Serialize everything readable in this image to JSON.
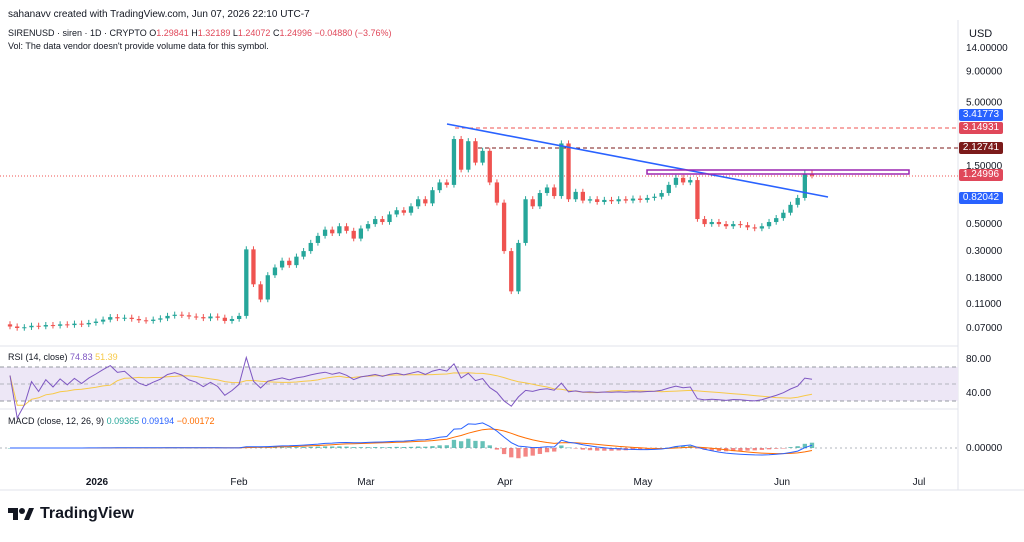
{
  "attribution": "sahanavv created with TradingView.com, Jun 07, 2026 22:10 UTC-7",
  "currency": "USD",
  "symbol": {
    "title": "SIRENUSD · siren · 1D · CRYPTO",
    "o_label": "O",
    "o": "1.29841",
    "h_label": "H",
    "h": "1.32189",
    "l_label": "L",
    "l": "1.24072",
    "c_label": "C",
    "c": "1.24996",
    "change": "−0.04880 (−3.76%)"
  },
  "volume_note": "Vol: The data vendor doesn't provide volume data for this symbol.",
  "price_axis": [
    "14.00000",
    "9.00000",
    "5.00000",
    "1.50000",
    "0.50000",
    "0.30000",
    "0.18000",
    "0.11000",
    "0.07000"
  ],
  "price_tags": [
    {
      "text": "3.41773",
      "color": "#2962ff"
    },
    {
      "text": "3.14931",
      "color": "#e0485a"
    },
    {
      "text": "2.12741",
      "color": "#7b1a1a"
    },
    {
      "text": "1.24996",
      "color": "#e0485a"
    },
    {
      "text": "0.82042",
      "color": "#2962ff"
    }
  ],
  "rsi": {
    "label": "RSI (14, close)",
    "value1": "74.83",
    "value2": "51.39",
    "axis": [
      "80.00",
      "40.00"
    ],
    "line_color": "#7e57c2",
    "ma_color": "#f7c948"
  },
  "macd": {
    "label": "MACD (close, 12, 26, 9)",
    "value1": "0.09365",
    "value2": "0.09194",
    "value3": "−0.00172",
    "axis": [
      "0.00000"
    ]
  },
  "time_axis": [
    "2026",
    "Feb",
    "Mar",
    "Apr",
    "May",
    "Jun",
    "Jul"
  ],
  "branding": "TradingView",
  "colors": {
    "up": "#26a69a",
    "down": "#ef5350",
    "trendline": "#2962ff",
    "resistance": "#9c27b0"
  },
  "chart_data": {
    "type": "candlestick",
    "scale": "log",
    "series": [
      {
        "name": "SIRENUSD",
        "close_points": [
          [
            0.075,
            0.072
          ],
          [
            0.072,
            0.07
          ],
          [
            0.07,
            0.071
          ],
          [
            0.071,
            0.073
          ],
          [
            0.073,
            0.072
          ],
          [
            0.072,
            0.074
          ],
          [
            0.074,
            0.073
          ],
          [
            0.073,
            0.075
          ],
          [
            0.075,
            0.074
          ],
          [
            0.074,
            0.076
          ],
          [
            0.076,
            0.075
          ],
          [
            0.075,
            0.077
          ],
          [
            0.077,
            0.079
          ],
          [
            0.079,
            0.082
          ],
          [
            0.082,
            0.086
          ],
          [
            0.086,
            0.084
          ],
          [
            0.084,
            0.085
          ],
          [
            0.085,
            0.083
          ],
          [
            0.083,
            0.081
          ],
          [
            0.081,
            0.08
          ],
          [
            0.08,
            0.082
          ],
          [
            0.082,
            0.084
          ],
          [
            0.084,
            0.088
          ],
          [
            0.088,
            0.09
          ],
          [
            0.09,
            0.089
          ],
          [
            0.089,
            0.087
          ],
          [
            0.087,
            0.086
          ],
          [
            0.086,
            0.084
          ],
          [
            0.084,
            0.087
          ],
          [
            0.087,
            0.085
          ],
          [
            0.085,
            0.08
          ],
          [
            0.08,
            0.083
          ],
          [
            0.083,
            0.088
          ],
          [
            0.088,
            0.31
          ],
          [
            0.31,
            0.16
          ],
          [
            0.16,
            0.12
          ],
          [
            0.12,
            0.19
          ],
          [
            0.19,
            0.22
          ],
          [
            0.22,
            0.25
          ],
          [
            0.25,
            0.23
          ],
          [
            0.23,
            0.27
          ],
          [
            0.27,
            0.3
          ],
          [
            0.3,
            0.35
          ],
          [
            0.35,
            0.4
          ],
          [
            0.4,
            0.45
          ],
          [
            0.45,
            0.42
          ],
          [
            0.42,
            0.48
          ],
          [
            0.48,
            0.44
          ],
          [
            0.44,
            0.38
          ],
          [
            0.38,
            0.46
          ],
          [
            0.46,
            0.5
          ],
          [
            0.5,
            0.55
          ],
          [
            0.55,
            0.52
          ],
          [
            0.52,
            0.6
          ],
          [
            0.6,
            0.65
          ],
          [
            0.65,
            0.62
          ],
          [
            0.62,
            0.7
          ],
          [
            0.7,
            0.8
          ],
          [
            0.8,
            0.74
          ],
          [
            0.74,
            0.95
          ],
          [
            0.95,
            1.1
          ],
          [
            1.1,
            1.05
          ],
          [
            1.05,
            2.5
          ],
          [
            2.5,
            1.4
          ],
          [
            1.4,
            2.4
          ],
          [
            2.4,
            1.6
          ],
          [
            1.6,
            2.0
          ],
          [
            2.0,
            1.1
          ],
          [
            1.1,
            0.75
          ],
          [
            0.75,
            0.3
          ],
          [
            0.3,
            0.14
          ],
          [
            0.14,
            0.35
          ],
          [
            0.35,
            0.8
          ],
          [
            0.8,
            0.7
          ],
          [
            0.7,
            0.9
          ],
          [
            0.9,
            1.0
          ],
          [
            1.0,
            0.85
          ],
          [
            0.85,
            2.3
          ],
          [
            2.3,
            0.8
          ],
          [
            0.8,
            0.92
          ],
          [
            0.92,
            0.78
          ],
          [
            0.78,
            0.8
          ],
          [
            0.8,
            0.76
          ],
          [
            0.76,
            0.79
          ],
          [
            0.79,
            0.77
          ],
          [
            0.77,
            0.8
          ],
          [
            0.8,
            0.78
          ],
          [
            0.78,
            0.81
          ],
          [
            0.81,
            0.79
          ],
          [
            0.79,
            0.82
          ],
          [
            0.82,
            0.84
          ],
          [
            0.84,
            0.9
          ],
          [
            0.9,
            1.05
          ],
          [
            1.05,
            1.2
          ],
          [
            1.2,
            1.1
          ],
          [
            1.1,
            1.15
          ],
          [
            1.15,
            0.55
          ],
          [
            0.55,
            0.5
          ],
          [
            0.5,
            0.52
          ],
          [
            0.52,
            0.5
          ],
          [
            0.5,
            0.48
          ],
          [
            0.48,
            0.5
          ],
          [
            0.5,
            0.49
          ],
          [
            0.49,
            0.47
          ],
          [
            0.47,
            0.46
          ],
          [
            0.46,
            0.48
          ],
          [
            0.48,
            0.52
          ],
          [
            0.52,
            0.56
          ],
          [
            0.56,
            0.62
          ],
          [
            0.62,
            0.72
          ],
          [
            0.72,
            0.82
          ],
          [
            0.82,
            1.3
          ],
          [
            1.3,
            1.25
          ]
        ]
      }
    ],
    "annotations": [
      "descending trendline",
      "horizontal resistance band",
      "dashed level 3.14931",
      "dashed level 2.12741"
    ]
  }
}
